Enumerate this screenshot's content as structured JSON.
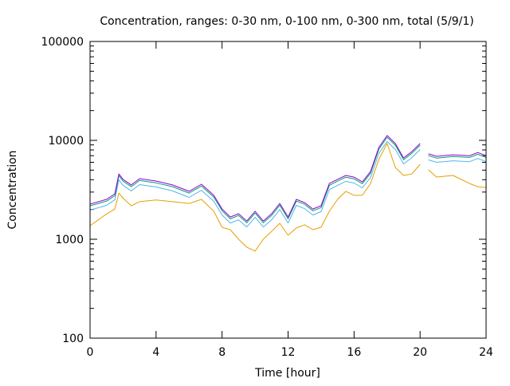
{
  "chart_data": {
    "type": "line",
    "title": "Concentration, ranges: 0-30 nm, 0-100 nm, 0-300 nm, total (5/9/1)",
    "xlabel": "Time [hour]",
    "ylabel": "Concentration",
    "xlim": [
      0,
      24
    ],
    "ylim": [
      100,
      100000
    ],
    "yscale": "log",
    "xticks": [
      "0",
      "4",
      "8",
      "12",
      "16",
      "20",
      "24"
    ],
    "yticks": [
      "100",
      "1000",
      "10000",
      "100000"
    ],
    "grid": false,
    "x": [
      0,
      1,
      1.5,
      1.75,
      2,
      2.5,
      3,
      4,
      5,
      6,
      6.75,
      7.5,
      8,
      8.5,
      9,
      9.5,
      10,
      10.5,
      11,
      11.5,
      12,
      12.5,
      13,
      13.5,
      14,
      14.5,
      15,
      15.5,
      16,
      16.5,
      17,
      17.5,
      18,
      18.5,
      19,
      19.5,
      20,
      20.25,
      20.5,
      21,
      22,
      23,
      23.5,
      24
    ],
    "series": [
      {
        "name": "total",
        "color": "#9400d3",
        "values": [
          2270,
          2530,
          2880,
          4580,
          4030,
          3540,
          4100,
          3880,
          3540,
          3050,
          3600,
          2780,
          2020,
          1680,
          1810,
          1530,
          1920,
          1530,
          1810,
          2300,
          1680,
          2530,
          2350,
          2020,
          2180,
          3660,
          4030,
          4420,
          4250,
          3800,
          4840,
          8480,
          11200,
          9300,
          6640,
          7700,
          9300,
          null,
          7300,
          6900,
          7150,
          7000,
          7540,
          7000
        ]
      },
      {
        "name": "0-300 nm",
        "color": "#009e73",
        "values": [
          2180,
          2430,
          2760,
          4400,
          3870,
          3400,
          3940,
          3720,
          3400,
          2930,
          3460,
          2670,
          1940,
          1610,
          1740,
          1470,
          1840,
          1470,
          1740,
          2210,
          1610,
          2430,
          2260,
          1940,
          2090,
          3510,
          3870,
          4240,
          4080,
          3650,
          4650,
          8140,
          10750,
          8930,
          6370,
          7390,
          8930,
          null,
          7010,
          6620,
          6860,
          6720,
          7240,
          6720
        ]
      },
      {
        "name": "0-100 nm",
        "color": "#56b4e9",
        "values": [
          1970,
          2200,
          2510,
          3980,
          3510,
          3080,
          3570,
          3380,
          3080,
          2650,
          3130,
          2420,
          1760,
          1460,
          1570,
          1330,
          1670,
          1330,
          1570,
          2000,
          1460,
          2200,
          2040,
          1760,
          1900,
          3180,
          3510,
          3850,
          3700,
          3310,
          4210,
          7380,
          9740,
          8090,
          5780,
          6700,
          8090,
          null,
          6350,
          6000,
          6220,
          6090,
          6560,
          6090
        ]
      },
      {
        "name": "0-30 nm",
        "color": "#e69f00",
        "values": [
          1370,
          1800,
          2020,
          2930,
          2600,
          2180,
          2400,
          2500,
          2400,
          2300,
          2530,
          1920,
          1320,
          1250,
          1000,
          830,
          760,
          1000,
          1200,
          1450,
          1100,
          1300,
          1400,
          1250,
          1320,
          1920,
          2530,
          3050,
          2780,
          2780,
          3660,
          6400,
          9300,
          5320,
          4420,
          4580,
          5730,
          null,
          5030,
          4260,
          4420,
          3660,
          3400,
          3340
        ]
      }
    ]
  }
}
